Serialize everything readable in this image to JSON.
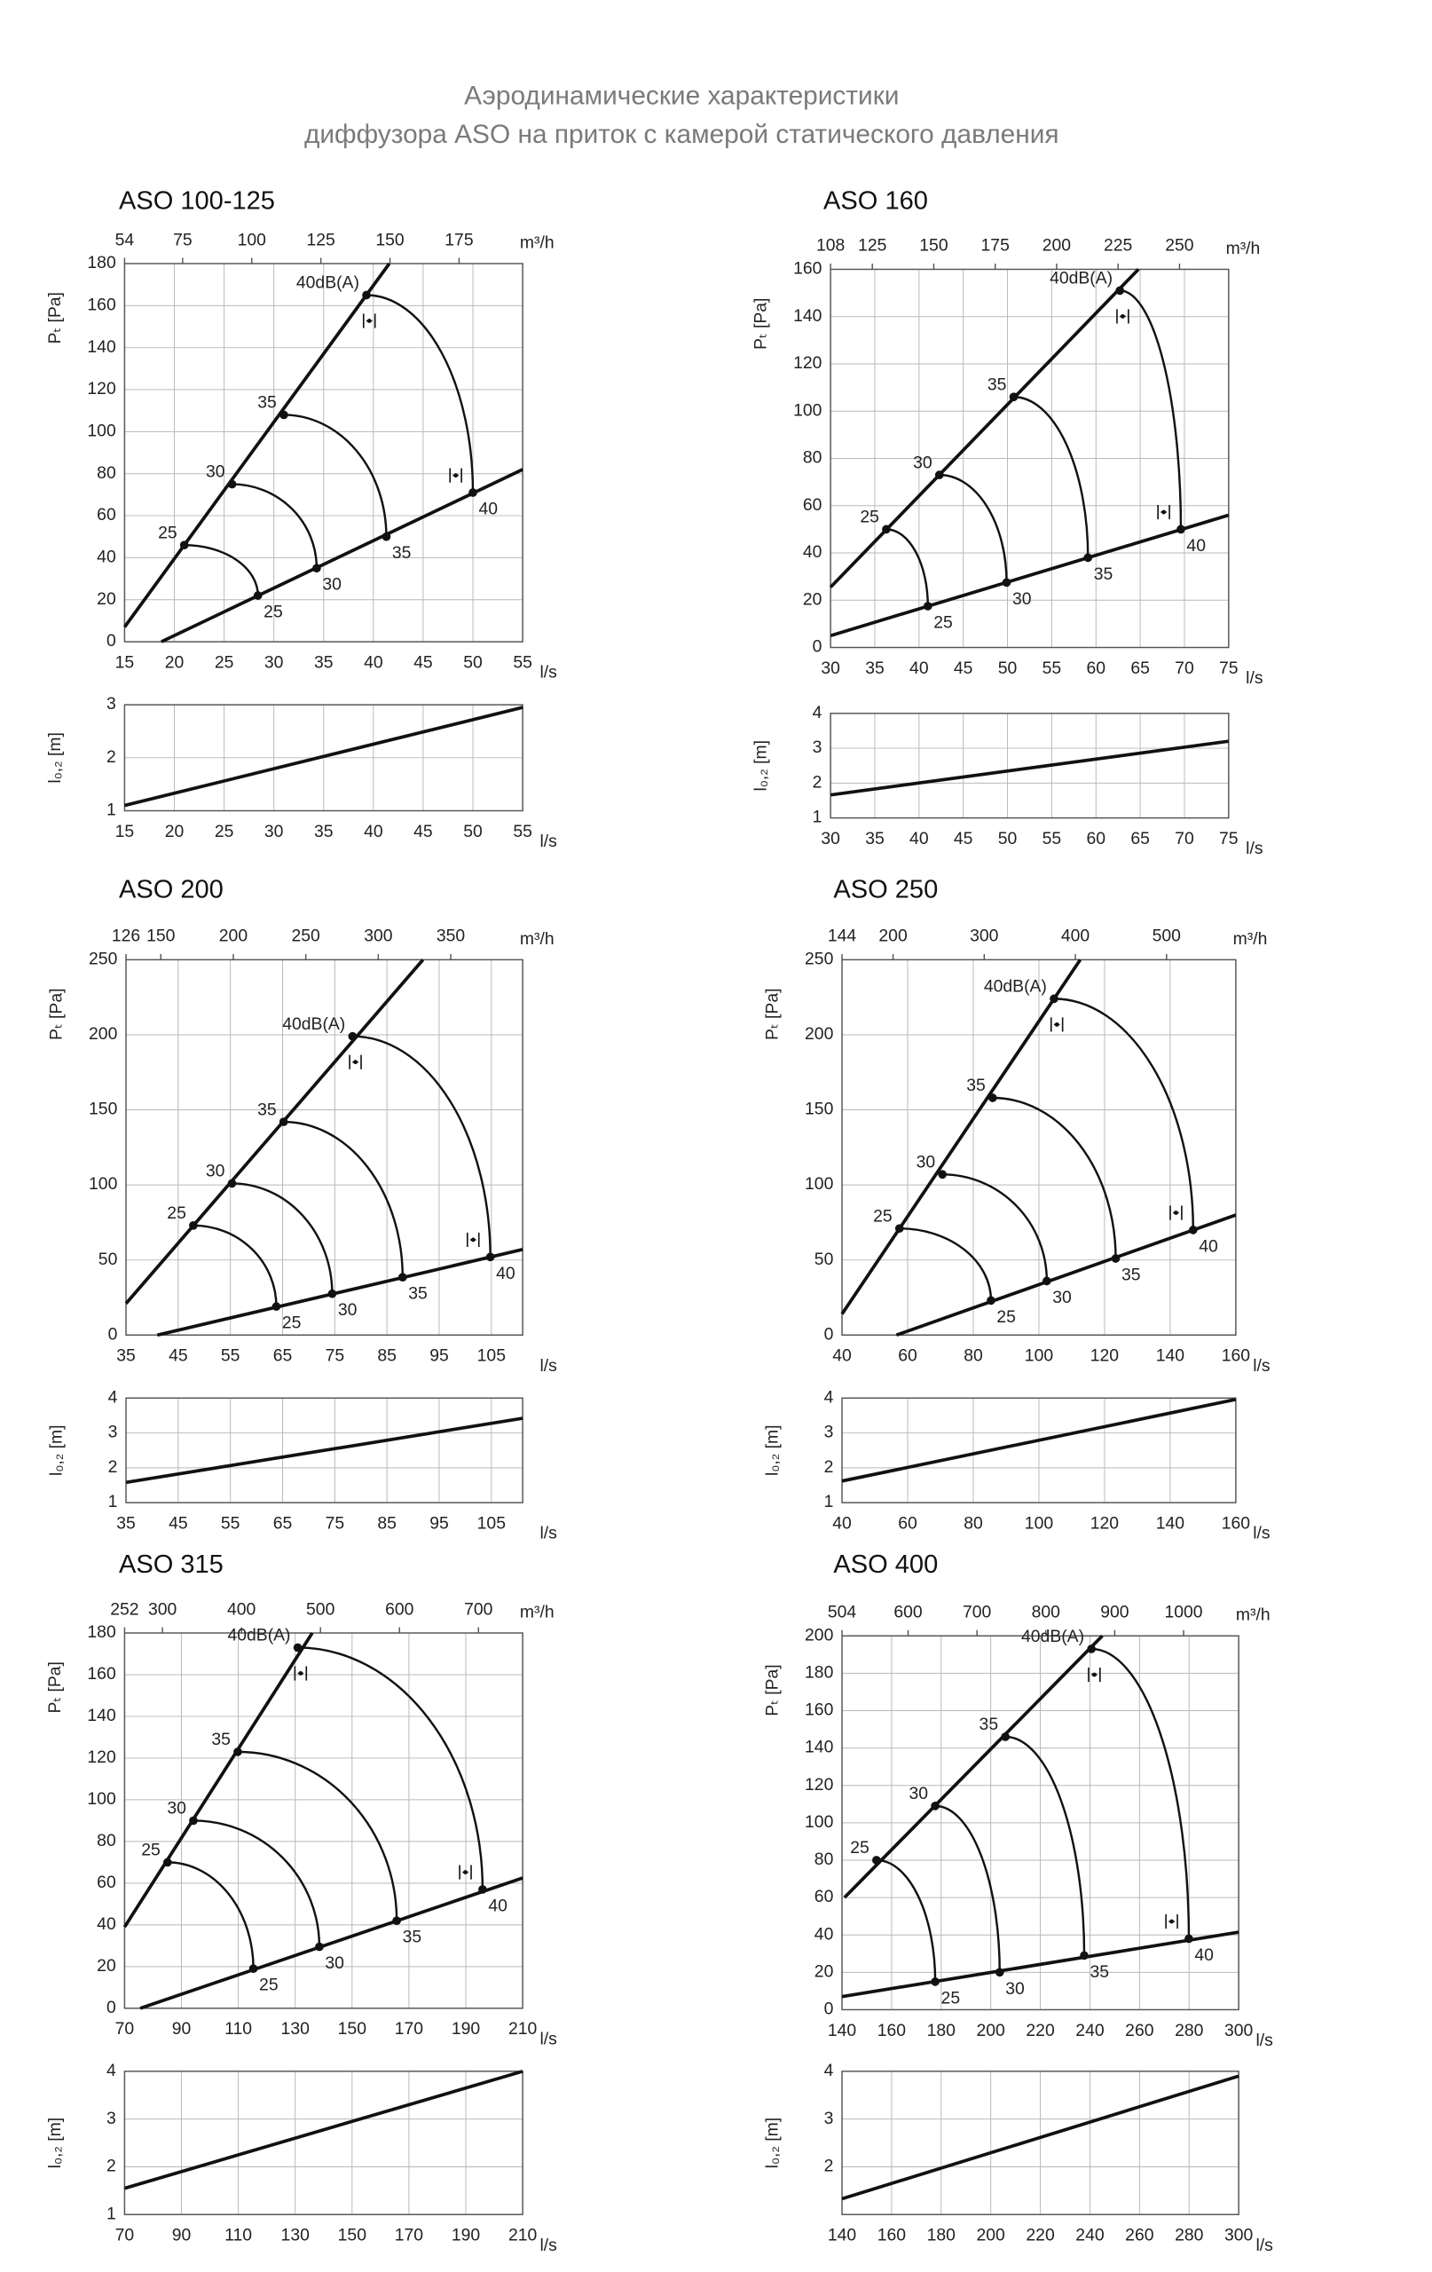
{
  "header": {
    "title": [
      "Аэродинамические характеристики",
      "диффузора ASO на приток с камерой статического давления"
    ]
  },
  "chart_data": [
    {
      "type": "line",
      "title": "ASO 100-125",
      "xlabel": "l/s",
      "x2label": "m³/h",
      "ylabel": "Pₜ [Pa]",
      "xlim": [
        15,
        55
      ],
      "xticks": [
        15,
        20,
        25,
        30,
        35,
        40,
        45,
        50,
        55
      ],
      "x2lim": [
        54,
        198
      ],
      "x2ticks": [
        54,
        75,
        100,
        125,
        150,
        175
      ],
      "ylim": [
        0,
        180
      ],
      "yticks": [
        0,
        20,
        40,
        60,
        80,
        100,
        120,
        140,
        160,
        180
      ],
      "grid": true,
      "series": [
        {
          "x": [
            15,
            41.6
          ],
          "values": [
            7,
            180
          ]
        },
        {
          "x": [
            18.7,
            55
          ],
          "values": [
            0,
            82
          ]
        }
      ],
      "points": [
        {
          "x": [
            21,
            25.8,
            31,
            39.3
          ],
          "values": [
            46,
            75,
            108,
            165
          ],
          "labels": [
            "25",
            "30",
            "35",
            "40dB(A)"
          ]
        },
        {
          "x": [
            28.4,
            34.3,
            41.3,
            50
          ],
          "values": [
            22,
            35,
            50,
            71
          ],
          "labels": [
            "25",
            "30",
            "35",
            "40"
          ]
        }
      ],
      "throw": {
        "xlabel": "l/s",
        "ylabel": "l₀,₂ [m]",
        "xlim": [
          15,
          55
        ],
        "xticks": [
          15,
          20,
          25,
          30,
          35,
          40,
          45,
          50,
          55
        ],
        "ylim": [
          1,
          3
        ],
        "yticks": [
          1,
          2,
          3
        ],
        "series": [
          {
            "x": [
              15,
              55
            ],
            "values": [
              1.1,
              2.95
            ]
          }
        ]
      }
    },
    {
      "type": "line",
      "title": "ASO 160",
      "xlabel": "l/s",
      "x2label": "m³/h",
      "ylabel": "Pₜ [Pa]",
      "xlim": [
        30,
        75
      ],
      "xticks": [
        30,
        35,
        40,
        45,
        50,
        55,
        60,
        65,
        70,
        75
      ],
      "x2lim": [
        108,
        270
      ],
      "x2ticks": [
        108,
        125,
        150,
        175,
        200,
        225,
        250
      ],
      "ylim": [
        0,
        160
      ],
      "yticks": [
        0,
        20,
        40,
        60,
        80,
        100,
        120,
        140,
        160
      ],
      "grid": true,
      "series": [
        {
          "x": [
            30,
            64.8
          ],
          "values": [
            25.5,
            160
          ]
        },
        {
          "x": [
            30,
            75
          ],
          "values": [
            5,
            56
          ]
        }
      ],
      "points": [
        {
          "x": [
            36.3,
            42.3,
            50.7,
            62.7
          ],
          "values": [
            50,
            73,
            106,
            151
          ],
          "labels": [
            "25",
            "30",
            "35",
            "40dB(A)"
          ]
        },
        {
          "x": [
            41,
            49.9,
            59.1,
            69.6
          ],
          "values": [
            17.5,
            27.5,
            38,
            50
          ],
          "labels": [
            "25",
            "30",
            "35",
            "40"
          ]
        }
      ],
      "throw": {
        "xlabel": "l/s",
        "ylabel": "l₀,₂ [m]",
        "xlim": [
          30,
          75
        ],
        "xticks": [
          30,
          35,
          40,
          45,
          50,
          55,
          60,
          65,
          70,
          75
        ],
        "ylim": [
          1,
          4
        ],
        "yticks": [
          1,
          2,
          3,
          4
        ],
        "series": [
          {
            "x": [
              30,
              75
            ],
            "values": [
              1.66,
              3.2
            ]
          }
        ]
      }
    },
    {
      "type": "line",
      "title": "ASO 200",
      "xlabel": "l/s",
      "x2label": "m³/h",
      "ylabel": "Pₜ [Pa]",
      "xlim": [
        35,
        111
      ],
      "xticks": [
        35,
        45,
        55,
        65,
        75,
        85,
        95,
        105
      ],
      "x2lim": [
        126,
        399.6
      ],
      "x2ticks": [
        126,
        150,
        200,
        250,
        300,
        350
      ],
      "ylim": [
        0,
        250
      ],
      "yticks": [
        0,
        50,
        100,
        150,
        200,
        250
      ],
      "grid": true,
      "series": [
        {
          "x": [
            35,
            91.9
          ],
          "values": [
            21,
            250
          ]
        },
        {
          "x": [
            41,
            111
          ],
          "values": [
            0,
            57
          ]
        }
      ],
      "points": [
        {
          "x": [
            47.9,
            55.3,
            65.2,
            78.4
          ],
          "values": [
            73,
            101,
            142,
            199
          ],
          "labels": [
            "25",
            "30",
            "35",
            "40dB(A)"
          ]
        },
        {
          "x": [
            63.8,
            74.5,
            88,
            104.8
          ],
          "values": [
            19,
            27.5,
            38.5,
            52
          ],
          "labels": [
            "25",
            "30",
            "35",
            "40"
          ]
        }
      ],
      "throw": {
        "xlabel": "l/s",
        "ylabel": "l₀,₂ [m]",
        "xlim": [
          35,
          111
        ],
        "xticks": [
          35,
          45,
          55,
          65,
          75,
          85,
          95,
          105
        ],
        "ylim": [
          1,
          4
        ],
        "yticks": [
          1,
          2,
          3,
          4
        ],
        "series": [
          {
            "x": [
              35,
              111
            ],
            "values": [
              1.58,
              3.42
            ]
          }
        ]
      }
    },
    {
      "type": "line",
      "title": "ASO 250",
      "xlabel": "l/s",
      "x2label": "m³/h",
      "ylabel": "Pₜ [Pa]",
      "xlim": [
        40,
        160
      ],
      "xticks": [
        40,
        60,
        80,
        100,
        120,
        140,
        160
      ],
      "x2lim": [
        144,
        576
      ],
      "x2ticks": [
        144,
        200,
        300,
        400,
        500
      ],
      "ylim": [
        0,
        250
      ],
      "yticks": [
        0,
        50,
        100,
        150,
        200,
        250
      ],
      "grid": true,
      "series": [
        {
          "x": [
            40,
            112.6
          ],
          "values": [
            14,
            250
          ]
        },
        {
          "x": [
            56.6,
            160
          ],
          "values": [
            0,
            80
          ]
        }
      ],
      "points": [
        {
          "x": [
            57.5,
            70.6,
            85.9,
            104.6
          ],
          "values": [
            71,
            107,
            158,
            224
          ],
          "labels": [
            "25",
            "30",
            "35",
            "40dB(A)"
          ]
        },
        {
          "x": [
            85.4,
            102.4,
            123.4,
            147
          ],
          "values": [
            23,
            36,
            51,
            70
          ],
          "labels": [
            "25",
            "30",
            "35",
            "40"
          ]
        }
      ],
      "throw": {
        "xlabel": "l/s",
        "ylabel": "l₀,₂ [m]",
        "xlim": [
          40,
          160
        ],
        "xticks": [
          40,
          60,
          80,
          100,
          120,
          140,
          160
        ],
        "ylim": [
          1,
          4
        ],
        "yticks": [
          1,
          2,
          3,
          4
        ],
        "series": [
          {
            "x": [
              40,
              160
            ],
            "values": [
              1.62,
              3.96
            ]
          }
        ]
      }
    },
    {
      "type": "line",
      "title": "ASO 315",
      "xlabel": "l/s",
      "x2label": "m³/h",
      "ylabel": "Pₜ [Pa]",
      "xlim": [
        70,
        210
      ],
      "xticks": [
        70,
        90,
        110,
        130,
        150,
        170,
        190,
        210
      ],
      "x2lim": [
        252,
        756
      ],
      "x2ticks": [
        252,
        300,
        400,
        500,
        600,
        700
      ],
      "ylim": [
        0,
        180
      ],
      "yticks": [
        0,
        20,
        40,
        60,
        80,
        100,
        120,
        140,
        160,
        180
      ],
      "grid": true,
      "series": [
        {
          "x": [
            70,
            136
          ],
          "values": [
            39,
            180
          ]
        },
        {
          "x": [
            75.5,
            210
          ],
          "values": [
            0,
            62.5
          ]
        }
      ],
      "points": [
        {
          "x": [
            85.1,
            94.2,
            109.8,
            130.9
          ],
          "values": [
            70,
            90,
            123,
            173
          ],
          "labels": [
            "25",
            "30",
            "35",
            "40dB(A)"
          ]
        },
        {
          "x": [
            115.3,
            138.5,
            165.7,
            195.9
          ],
          "values": [
            19,
            29.5,
            42,
            57
          ],
          "labels": [
            "25",
            "30",
            "35",
            "40"
          ]
        }
      ],
      "throw": {
        "xlabel": "l/s",
        "ylabel": "l₀,₂ [m]",
        "xlim": [
          70,
          210
        ],
        "xticks": [
          70,
          90,
          110,
          130,
          150,
          170,
          190,
          210
        ],
        "ylim": [
          1,
          4
        ],
        "yticks": [
          1,
          2,
          3,
          4
        ],
        "series": [
          {
            "x": [
              70,
              210
            ],
            "values": [
              1.55,
              4
            ]
          }
        ]
      }
    },
    {
      "type": "line",
      "title": "ASO 400",
      "xlabel": "l/s",
      "x2label": "m³/h",
      "ylabel": "Pₜ [Pa]",
      "xlim": [
        140,
        300
      ],
      "xticks": [
        140,
        160,
        180,
        200,
        220,
        240,
        260,
        280,
        300
      ],
      "x2lim": [
        504,
        1080
      ],
      "x2ticks": [
        504,
        600,
        700,
        800,
        900,
        1000
      ],
      "ylim": [
        0,
        200
      ],
      "yticks": [
        0,
        20,
        40,
        60,
        80,
        100,
        120,
        140,
        160,
        180,
        200
      ],
      "grid": true,
      "series": [
        {
          "x": [
            141,
            245
          ],
          "values": [
            60,
            200
          ]
        },
        {
          "x": [
            140,
            300
          ],
          "values": [
            7,
            41.5
          ]
        }
      ],
      "points": [
        {
          "x": [
            153.9,
            177.6,
            205.9,
            240.6
          ],
          "values": [
            80,
            109,
            146,
            193
          ],
          "labels": [
            "25",
            "30",
            "35",
            "40dB(A)"
          ]
        },
        {
          "x": [
            177.6,
            203.6,
            237.7,
            279.9
          ],
          "values": [
            15,
            20,
            29,
            38
          ],
          "labels": [
            "25",
            "30",
            "35",
            "40"
          ]
        }
      ],
      "throw": {
        "xlabel": "l/s",
        "ylabel": "l₀,₂ [m]",
        "xlim": [
          140,
          300
        ],
        "xticks": [
          140,
          160,
          180,
          200,
          220,
          240,
          260,
          280,
          300
        ],
        "ylim": [
          1,
          4
        ],
        "yticks": [
          2,
          3,
          4
        ],
        "series": [
          {
            "x": [
              140,
              300
            ],
            "values": [
              1.33,
              3.9
            ]
          }
        ]
      }
    }
  ]
}
